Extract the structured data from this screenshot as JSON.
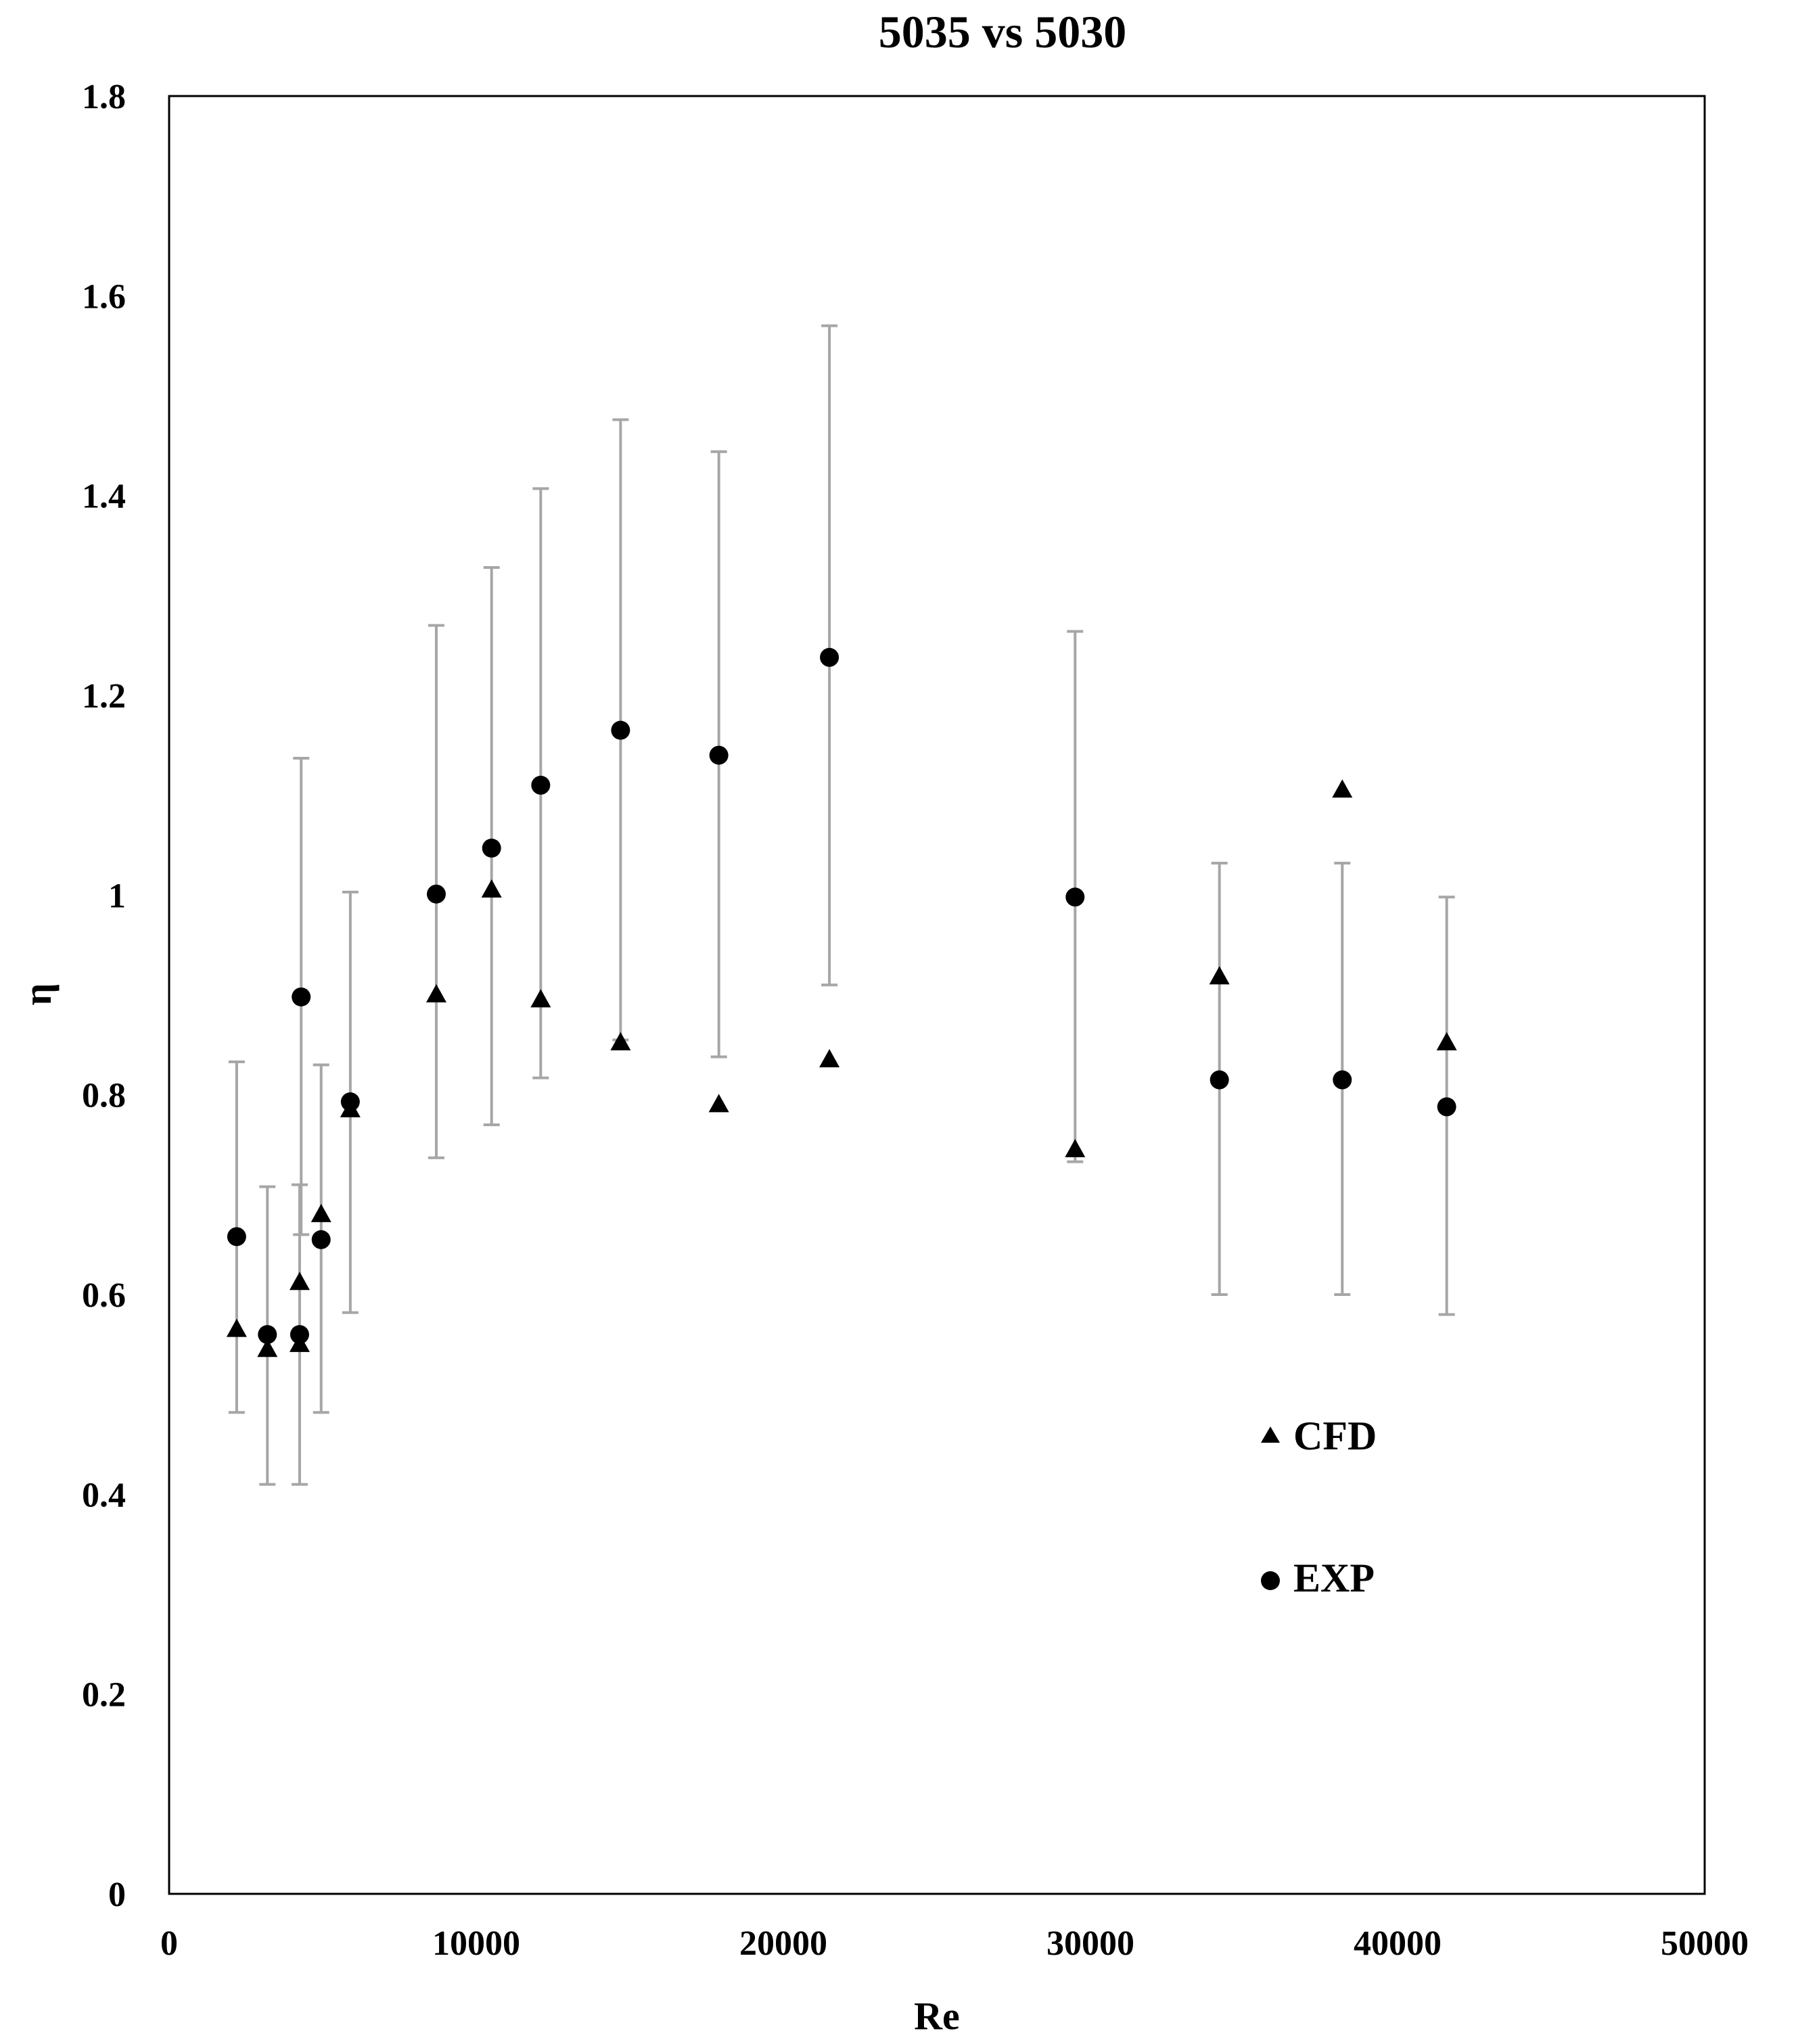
{
  "chart_data": {
    "type": "scatter",
    "title": "5035 vs 5030",
    "xlabel": "Re",
    "ylabel": "η",
    "xlim": [
      0,
      50000
    ],
    "ylim": [
      0,
      1.8
    ],
    "x_ticks": [
      0,
      10000,
      20000,
      30000,
      40000,
      50000
    ],
    "y_ticks": [
      0,
      0.2,
      0.4,
      0.6,
      0.8,
      1,
      1.2,
      1.4,
      1.6,
      1.8
    ],
    "x_tick_labels": [
      "0",
      "10000",
      "20000",
      "30000",
      "40000",
      "50000"
    ],
    "y_tick_labels": [
      "0",
      "0.2",
      "0.4",
      "0.6",
      "0.8",
      "1",
      "1.2",
      "1.4",
      "1.6",
      "1.8"
    ],
    "grid": false,
    "legend_position": "bottom-right",
    "series": [
      {
        "name": "CFD",
        "marker": "triangle",
        "color": "#000000",
        "points": [
          {
            "x": 2200,
            "y": 0.565
          },
          {
            "x": 3200,
            "y": 0.545
          },
          {
            "x": 4250,
            "y": 0.55
          },
          {
            "x": 4250,
            "y": 0.612
          },
          {
            "x": 4950,
            "y": 0.68
          },
          {
            "x": 5900,
            "y": 0.785
          },
          {
            "x": 8700,
            "y": 0.9
          },
          {
            "x": 10500,
            "y": 1.005
          },
          {
            "x": 12100,
            "y": 0.895
          },
          {
            "x": 14700,
            "y": 0.852
          },
          {
            "x": 17900,
            "y": 0.79
          },
          {
            "x": 21500,
            "y": 0.835
          },
          {
            "x": 29500,
            "y": 0.745
          },
          {
            "x": 34200,
            "y": 0.918
          },
          {
            "x": 38200,
            "y": 1.105
          },
          {
            "x": 41600,
            "y": 0.852
          }
        ]
      },
      {
        "name": "EXP",
        "marker": "circle",
        "color": "#000000",
        "error_bar_color": "#a6a6a6",
        "points": [
          {
            "x": 2200,
            "y": 0.658,
            "err_low": 0.482,
            "err_high": 0.833
          },
          {
            "x": 3200,
            "y": 0.56,
            "err_low": 0.41,
            "err_high": 0.708
          },
          {
            "x": 4250,
            "y": 0.56,
            "err_low": 0.41,
            "err_high": 0.71
          },
          {
            "x": 4300,
            "y": 0.898,
            "err_low": 0.66,
            "err_high": 1.137
          },
          {
            "x": 4950,
            "y": 0.655,
            "err_low": 0.482,
            "err_high": 0.83
          },
          {
            "x": 5900,
            "y": 0.793,
            "err_low": 0.582,
            "err_high": 1.003
          },
          {
            "x": 8700,
            "y": 1.001,
            "err_low": 0.737,
            "err_high": 1.27
          },
          {
            "x": 10500,
            "y": 1.047,
            "err_low": 0.77,
            "err_high": 1.328
          },
          {
            "x": 12100,
            "y": 1.11,
            "err_low": 0.817,
            "err_high": 1.407
          },
          {
            "x": 14700,
            "y": 1.165,
            "err_low": 0.855,
            "err_high": 1.476
          },
          {
            "x": 17900,
            "y": 1.14,
            "err_low": 0.838,
            "err_high": 1.444
          },
          {
            "x": 21500,
            "y": 1.238,
            "err_low": 0.91,
            "err_high": 1.57
          },
          {
            "x": 29500,
            "y": 0.998,
            "err_low": 0.733,
            "err_high": 1.264
          },
          {
            "x": 34200,
            "y": 0.815,
            "err_low": 0.6,
            "err_high": 1.032
          },
          {
            "x": 38200,
            "y": 0.815,
            "err_low": 0.6,
            "err_high": 1.032
          },
          {
            "x": 41600,
            "y": 0.788,
            "err_low": 0.58,
            "err_high": 0.998
          }
        ]
      }
    ]
  }
}
